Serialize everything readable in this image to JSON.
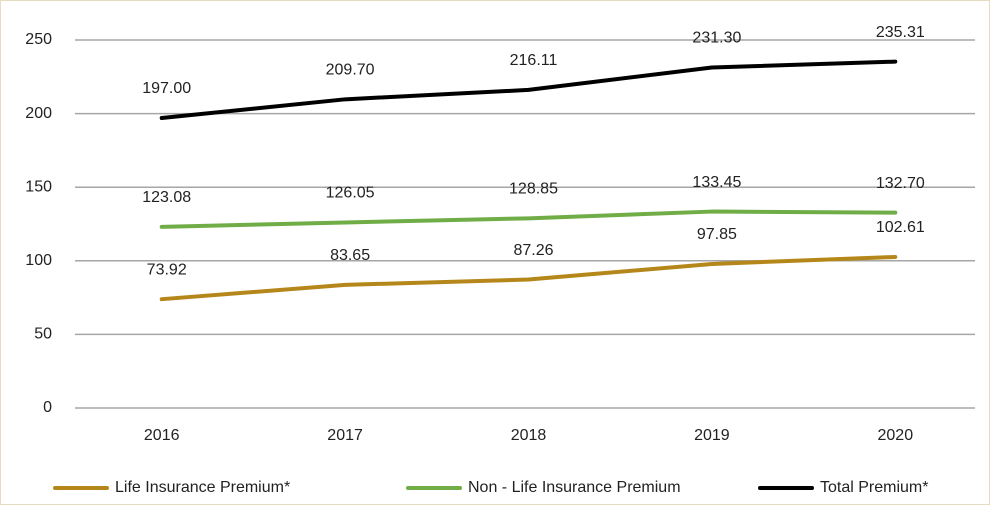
{
  "chart_data": {
    "type": "line",
    "categories": [
      "2016",
      "2017",
      "2018",
      "2019",
      "2020"
    ],
    "series": [
      {
        "name": "Life Insurance Premium*",
        "color": "#b5871a",
        "values": [
          73.92,
          83.65,
          87.26,
          97.85,
          102.61
        ],
        "value_labels": [
          "73.92",
          "83.65",
          "87.26",
          "97.85",
          "102.61"
        ]
      },
      {
        "name": "Non - Life Insurance Premium",
        "color": "#70ad47",
        "values": [
          123.08,
          126.05,
          128.85,
          133.45,
          132.7
        ],
        "value_labels": [
          "123.08",
          "126.05",
          "128.85",
          "133.45",
          "132.70"
        ]
      },
      {
        "name": "Total Premium*",
        "color": "#000000",
        "values": [
          197,
          209.7,
          216.11,
          231.3,
          235.31
        ],
        "value_labels": [
          "197.00",
          "209.70",
          "216.11",
          "231.30",
          "235.31"
        ]
      }
    ],
    "ylim": [
      0,
      250
    ],
    "yticks": [
      0,
      50,
      100,
      150,
      200,
      250
    ],
    "grid": true,
    "legend": "bottom"
  }
}
